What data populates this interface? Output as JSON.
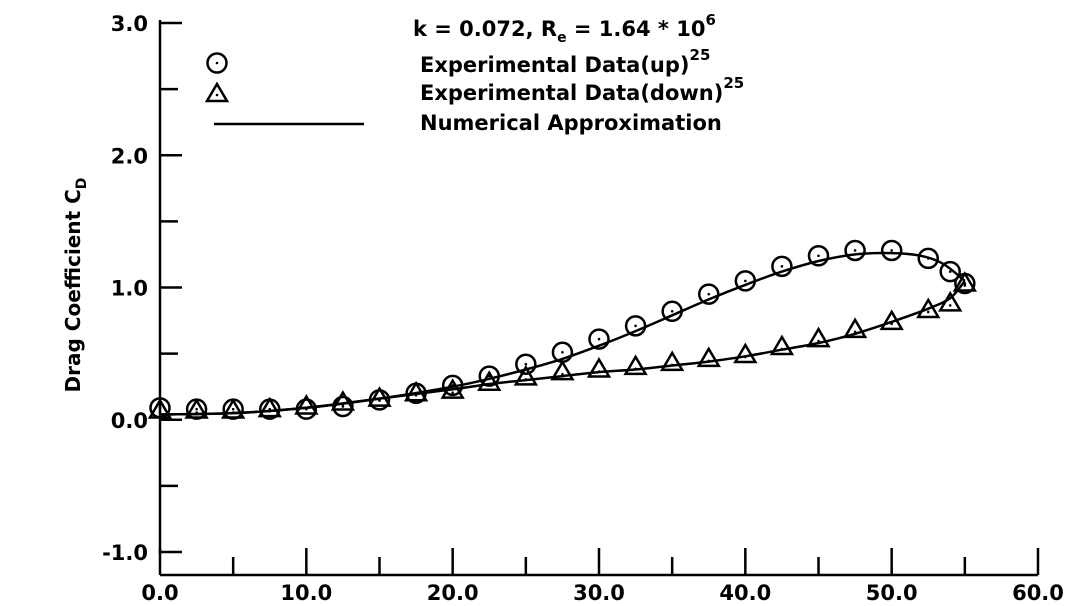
{
  "chart_data": {
    "type": "scatter",
    "annotation": {
      "prefix": "k = 0.072, R",
      "sub": "e",
      "middle": " = 1.64",
      "times": " * 10",
      "sup": "6"
    },
    "ylabel": {
      "main": "Drag Coefficient C",
      "sub": "D"
    },
    "xlabel": "",
    "xlim": [
      0,
      60
    ],
    "ylim": [
      -1.0,
      3.0
    ],
    "x_ticks": [
      "0.0",
      "10.0",
      "20.0",
      "30.0",
      "40.0",
      "50.0",
      "60.0"
    ],
    "y_ticks": [
      "-1.0",
      "0.0",
      "1.0",
      "2.0",
      "3.0"
    ],
    "legend_position": "top-center",
    "series": [
      {
        "name": "Experimental Data(up)",
        "ref": "25",
        "marker": "circle",
        "x": [
          0.0,
          2.5,
          5.0,
          7.5,
          10.0,
          12.5,
          15.0,
          17.5,
          20.0,
          22.5,
          25.0,
          27.5,
          30.0,
          32.5,
          35.0,
          37.5,
          40.0,
          42.5,
          45.0,
          47.5,
          50.0,
          52.5,
          54.0,
          55.0
        ],
        "y": [
          0.09,
          0.08,
          0.08,
          0.08,
          0.08,
          0.1,
          0.15,
          0.2,
          0.26,
          0.33,
          0.42,
          0.51,
          0.61,
          0.71,
          0.82,
          0.95,
          1.05,
          1.16,
          1.24,
          1.28,
          1.28,
          1.22,
          1.12,
          1.03
        ]
      },
      {
        "name": "Experimental Data(down)",
        "ref": "25",
        "marker": "triangle",
        "x": [
          0.0,
          2.5,
          5.0,
          7.5,
          10.0,
          12.5,
          15.0,
          17.5,
          20.0,
          22.5,
          25.0,
          27.5,
          30.0,
          32.5,
          35.0,
          37.5,
          40.0,
          42.5,
          45.0,
          47.5,
          50.0,
          52.5,
          54.0,
          55.0
        ],
        "y": [
          0.07,
          0.07,
          0.07,
          0.08,
          0.1,
          0.13,
          0.16,
          0.2,
          0.22,
          0.28,
          0.32,
          0.36,
          0.38,
          0.4,
          0.43,
          0.46,
          0.49,
          0.55,
          0.61,
          0.68,
          0.74,
          0.83,
          0.88,
          1.03
        ]
      },
      {
        "name": "Numerical Approximation",
        "marker": "line",
        "upper": {
          "x": [
            0,
            5,
            10,
            15,
            20,
            22.5,
            25,
            27.5,
            30,
            32.5,
            35,
            37.5,
            40,
            42.5,
            45,
            47.5,
            50,
            52,
            53.5,
            55
          ],
          "y": [
            0.04,
            0.05,
            0.09,
            0.16,
            0.25,
            0.31,
            0.38,
            0.46,
            0.56,
            0.67,
            0.79,
            0.91,
            1.02,
            1.12,
            1.2,
            1.25,
            1.26,
            1.24,
            1.18,
            1.05
          ]
        },
        "lower": {
          "x": [
            0,
            5,
            10,
            15,
            20,
            22.5,
            25,
            27.5,
            30,
            32.5,
            35,
            37.5,
            40,
            42.5,
            45,
            47.5,
            50,
            52.5,
            54,
            55
          ],
          "y": [
            0.04,
            0.05,
            0.09,
            0.16,
            0.23,
            0.27,
            0.3,
            0.33,
            0.36,
            0.38,
            0.41,
            0.44,
            0.48,
            0.53,
            0.58,
            0.65,
            0.74,
            0.84,
            0.92,
            1.05
          ]
        }
      }
    ]
  }
}
